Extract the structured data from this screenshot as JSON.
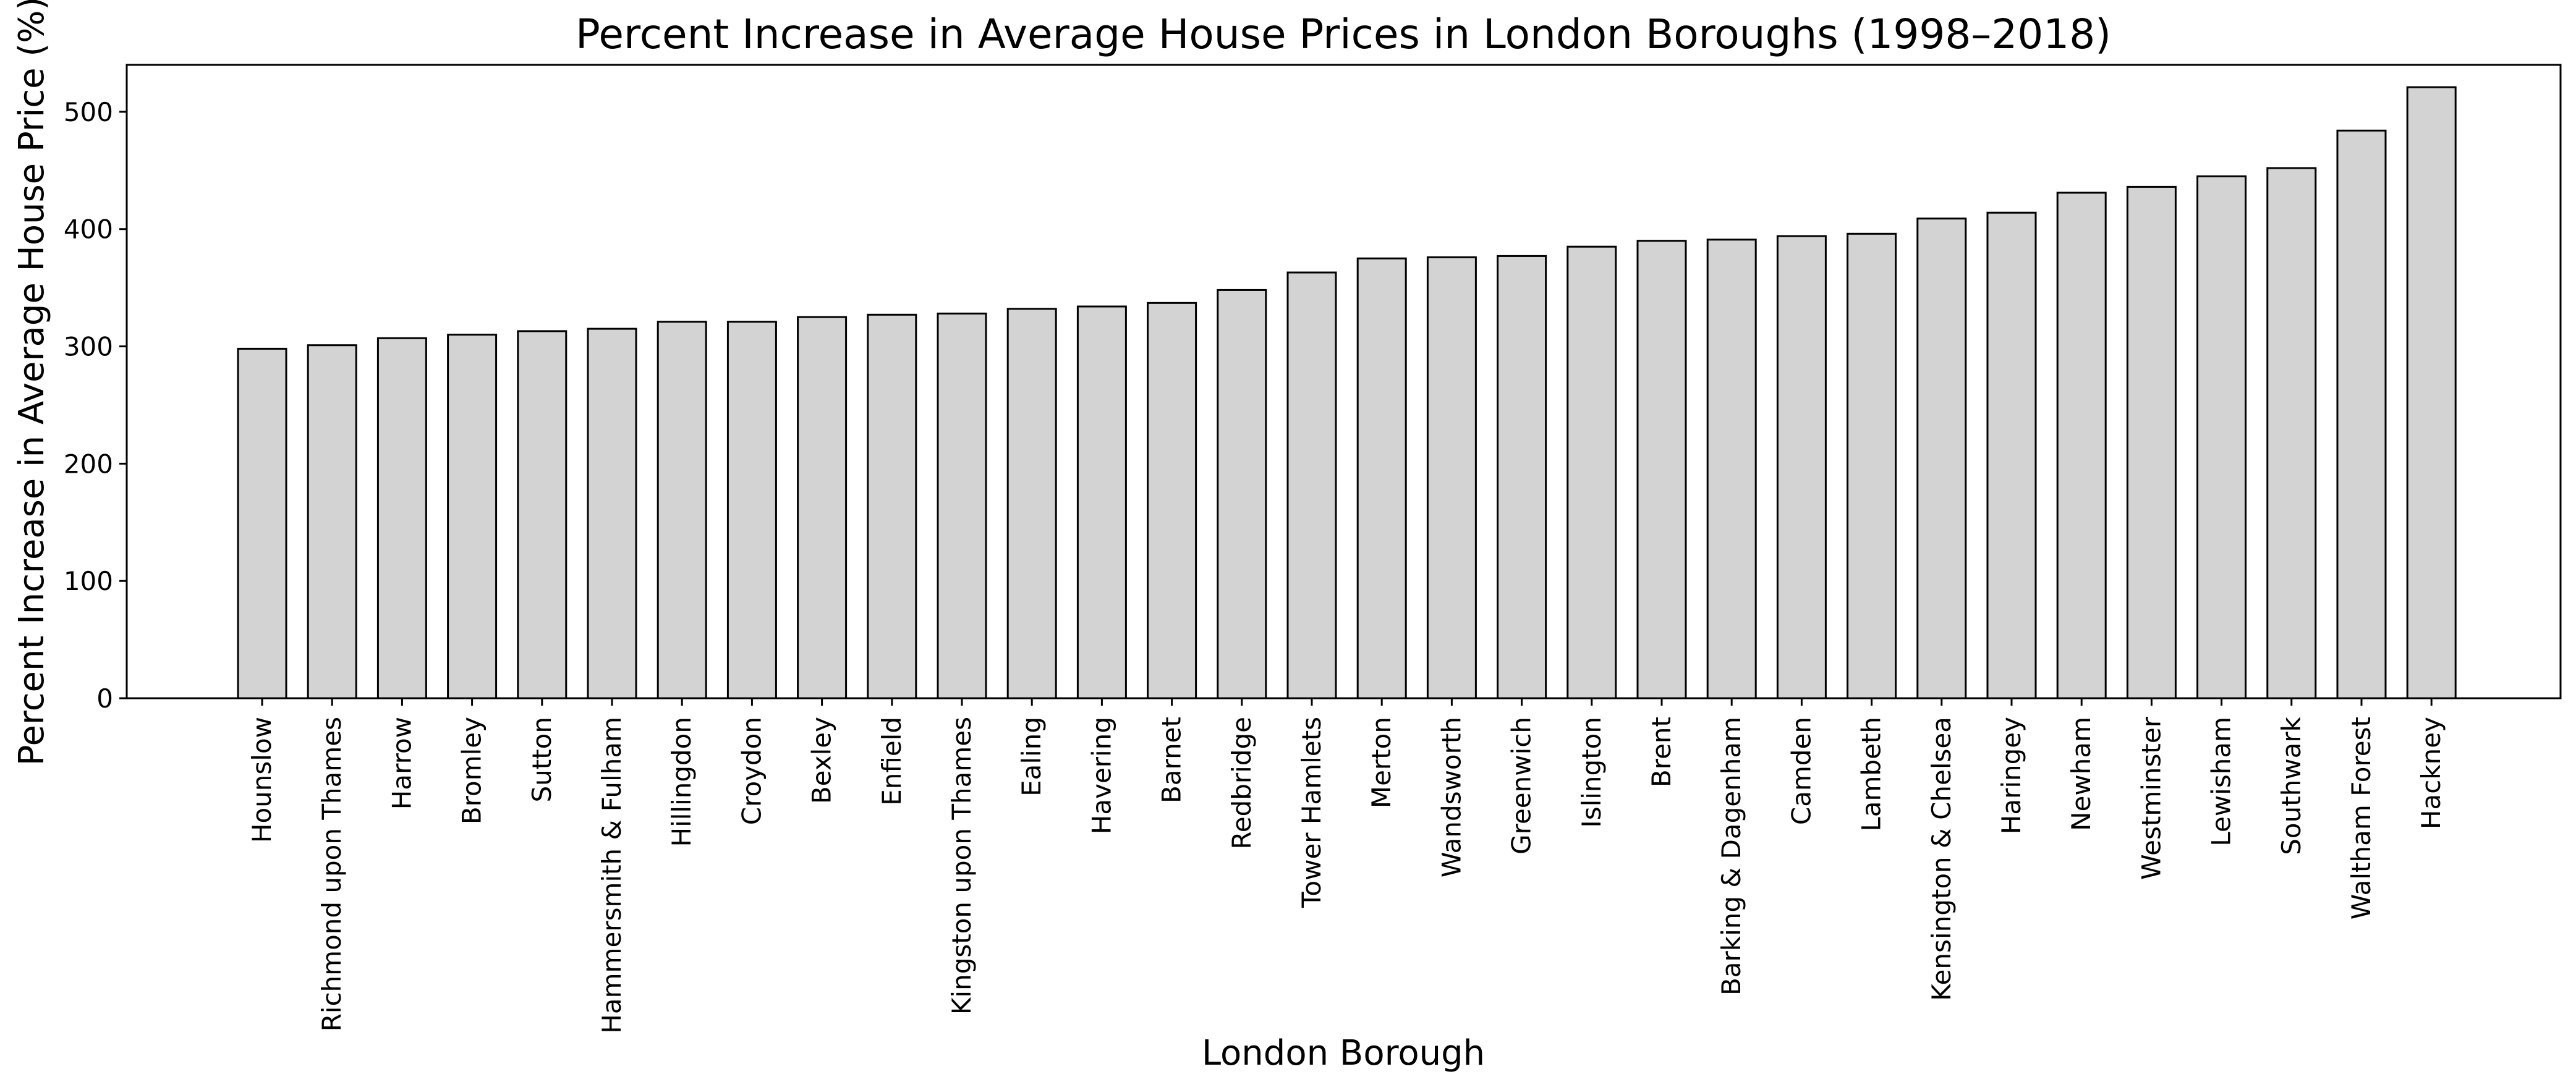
{
  "chart_data": {
    "type": "bar",
    "title": "Percent Increase in Average House Prices in London Boroughs (1998–2018)",
    "xlabel": "London Borough",
    "ylabel": "Percent Increase in Average House Price (%)",
    "ylim": [
      0,
      540
    ],
    "yticks": [
      0,
      100,
      200,
      300,
      400,
      500
    ],
    "grid": false,
    "legend": "none",
    "bar_color": "#d3d3d3",
    "edge_color": "#000000",
    "categories": [
      "Hounslow",
      "Richmond upon Thames",
      "Harrow",
      "Bromley",
      "Sutton",
      "Hammersmith & Fulham",
      "Hillingdon",
      "Croydon",
      "Bexley",
      "Enfield",
      "Kingston upon Thames",
      "Ealing",
      "Havering",
      "Barnet",
      "Redbridge",
      "Tower Hamlets",
      "Merton",
      "Wandsworth",
      "Greenwich",
      "Islington",
      "Brent",
      "Barking & Dagenham",
      "Camden",
      "Lambeth",
      "Kensington & Chelsea",
      "Haringey",
      "Newham",
      "Westminster",
      "Lewisham",
      "Southwark",
      "Waltham Forest",
      "Hackney"
    ],
    "values": [
      298,
      301,
      307,
      310,
      313,
      315,
      321,
      321,
      325,
      327,
      328,
      332,
      334,
      337,
      348,
      363,
      375,
      376,
      377,
      385,
      390,
      391,
      394,
      396,
      409,
      414,
      431,
      436,
      445,
      452,
      484,
      521
    ]
  }
}
